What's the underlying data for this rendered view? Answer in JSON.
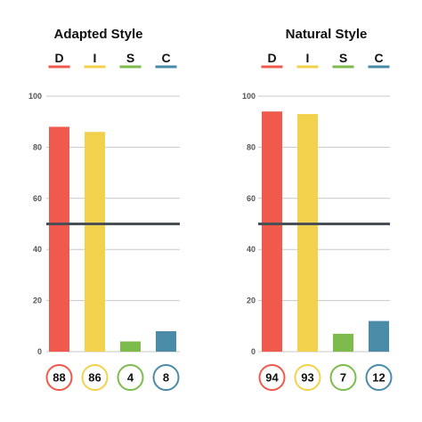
{
  "colors": {
    "D": "#ef5a4c",
    "I": "#f2d24c",
    "S": "#7dbb4d",
    "C": "#4a8ba8",
    "threshold_line": "#4a4f55",
    "grid": "#c8c8c8"
  },
  "chart_data": [
    {
      "type": "bar",
      "title": "Adapted Style",
      "categories": [
        "D",
        "I",
        "S",
        "C"
      ],
      "values": [
        88,
        86,
        4,
        8
      ],
      "value_labels": [
        "88",
        "86",
        "4",
        "8"
      ],
      "yticks": [
        "0",
        "20",
        "40",
        "60",
        "80",
        "100"
      ],
      "ylim": [
        0,
        100
      ],
      "threshold": 50,
      "grid": true,
      "legend": "top"
    },
    {
      "type": "bar",
      "title": "Natural Style",
      "categories": [
        "D",
        "I",
        "S",
        "C"
      ],
      "values": [
        94,
        93,
        7,
        12
      ],
      "value_labels": [
        "94",
        "93",
        "7",
        "12"
      ],
      "yticks": [
        "0",
        "20",
        "40",
        "60",
        "80",
        "100"
      ],
      "ylim": [
        0,
        100
      ],
      "threshold": 50,
      "grid": true,
      "legend": "top"
    }
  ]
}
